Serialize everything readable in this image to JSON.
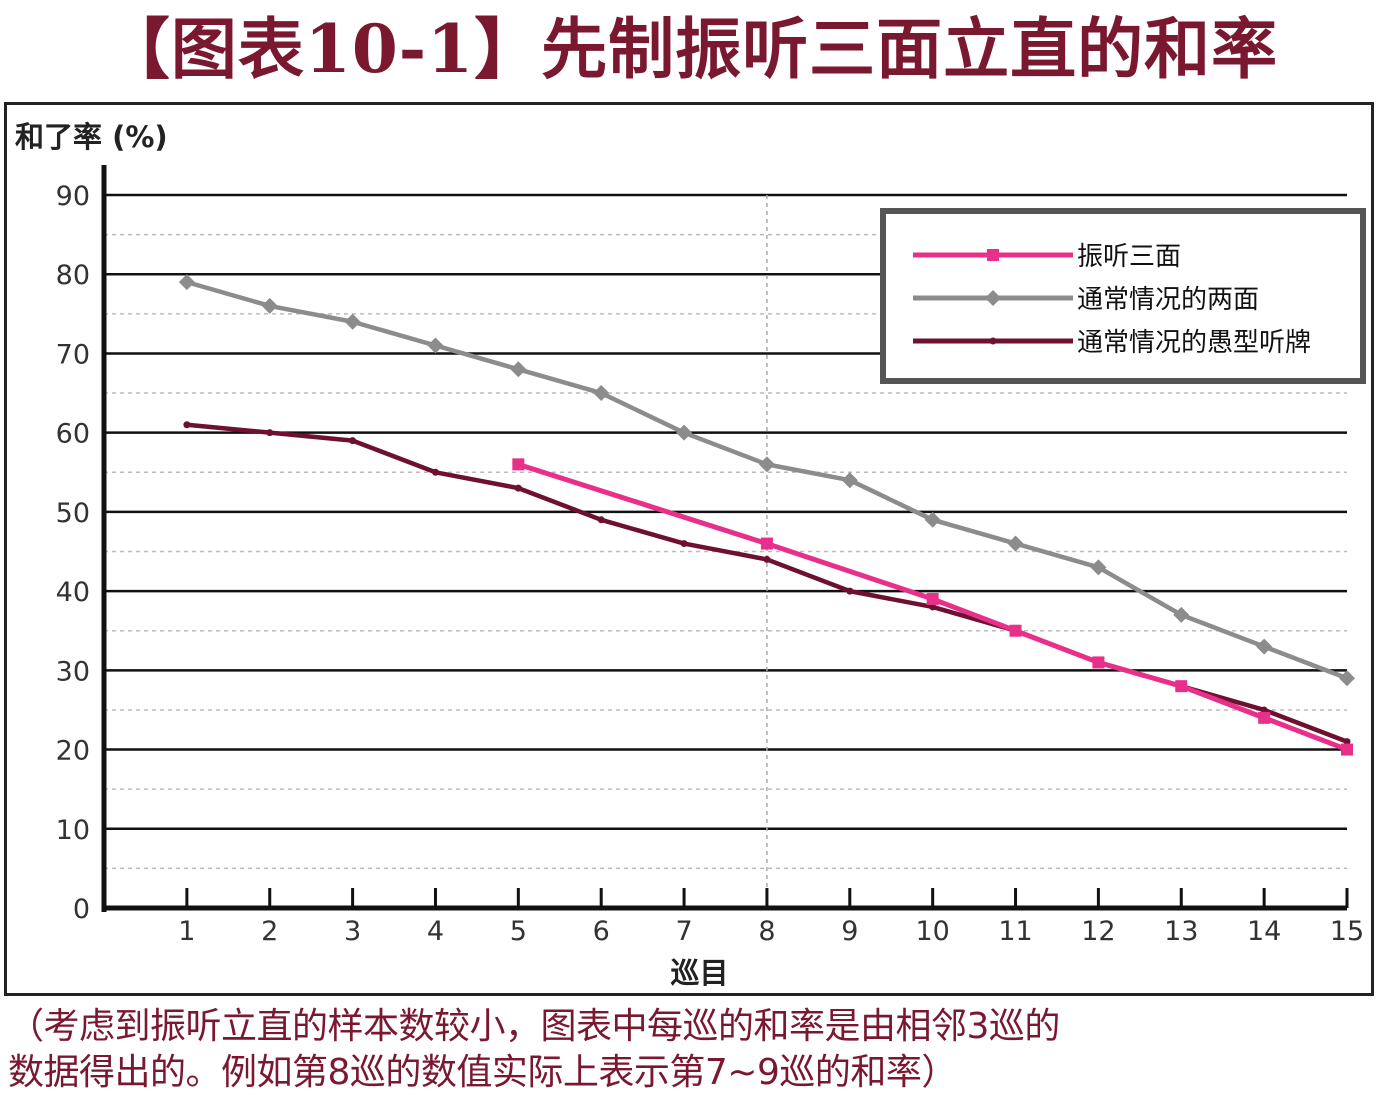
{
  "title": "【图表10-1】先制振听三面立直的和率",
  "caption": {
    "line1": "（考虑到振听立直的样本数较小，图表中每巡的和率是由相邻3巡的",
    "line2": "数据得出的。例如第8巡的数值实际上表示第7~9巡的和率）"
  },
  "colors": {
    "title": "#7a1830",
    "series_pink": "#e8308a",
    "series_gray": "#8c8c8c",
    "series_maroon": "#6e1030"
  },
  "chart_data": {
    "type": "line",
    "xlabel": "巡目",
    "ylabel": "和了率 (%)",
    "x": [
      1,
      2,
      3,
      4,
      5,
      6,
      7,
      8,
      9,
      10,
      11,
      12,
      13,
      14,
      15
    ],
    "y_ticks": [
      0,
      10,
      20,
      30,
      40,
      50,
      60,
      70,
      80,
      90
    ],
    "ylim": [
      0,
      90
    ],
    "xlim": [
      0,
      15
    ],
    "grid": true,
    "legend_position": "top-right",
    "series": [
      {
        "name": "振听三面",
        "color": "#e8308a",
        "marker": "square",
        "x": [
          5,
          8,
          10,
          11,
          12,
          13,
          14,
          15
        ],
        "values": [
          56,
          46,
          39,
          35,
          31,
          28,
          24,
          20
        ]
      },
      {
        "name": "通常情况的两面",
        "color": "#8c8c8c",
        "marker": "diamond",
        "x": [
          1,
          2,
          3,
          4,
          5,
          6,
          7,
          8,
          9,
          10,
          11,
          12,
          13,
          14,
          15
        ],
        "values": [
          79,
          76,
          74,
          71,
          68,
          65,
          60,
          56,
          54,
          49,
          46,
          43,
          37,
          33,
          29
        ]
      },
      {
        "name": "通常情况的愚型听牌",
        "color": "#6e1030",
        "marker": "dot",
        "x": [
          1,
          2,
          3,
          4,
          5,
          6,
          7,
          8,
          9,
          10,
          11,
          12,
          13,
          14,
          15
        ],
        "values": [
          61,
          60,
          59,
          55,
          53,
          49,
          46,
          44,
          40,
          38,
          35,
          31,
          28,
          25,
          21
        ]
      }
    ]
  }
}
